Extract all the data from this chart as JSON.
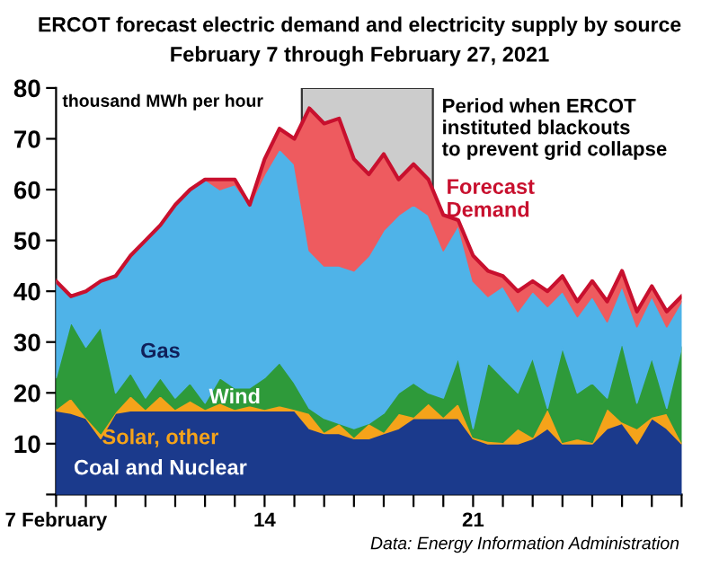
{
  "chart_data": {
    "type": "area",
    "stacked": true,
    "title": "ERCOT forecast electric demand and electricity supply by source",
    "subtitle": "February 7 through February 27, 2021",
    "ylabel": "thousand MWh per hour",
    "x": [
      7,
      7.5,
      8,
      8.5,
      9,
      9.5,
      10,
      10.5,
      11,
      11.5,
      12,
      12.5,
      13,
      13.5,
      14,
      14.5,
      15,
      15.5,
      16,
      16.5,
      17,
      17.5,
      18,
      18.5,
      19,
      19.5,
      20,
      20.5,
      21,
      21.5,
      22,
      22.5,
      23,
      23.5,
      24,
      24.5,
      25,
      25.5,
      26,
      26.5,
      27,
      27.5,
      28
    ],
    "series": [
      {
        "name": "Coal and Nuclear",
        "color": "#1b3a8c",
        "values": [
          16.5,
          16,
          15,
          11,
          16,
          16.5,
          16.5,
          16.5,
          16.5,
          16.5,
          16.5,
          16.5,
          16.5,
          16.5,
          16.5,
          16.5,
          16.5,
          13,
          12,
          12,
          11,
          11,
          12,
          13,
          15,
          15,
          15,
          15,
          11,
          10,
          10,
          10,
          11,
          13,
          10,
          10,
          10,
          13,
          14,
          10,
          15,
          13,
          10
        ]
      },
      {
        "name": "Solar, other",
        "color": "#f5a31a",
        "values": [
          0.3,
          3,
          0.3,
          1,
          0.3,
          3,
          0.3,
          3,
          0.3,
          2,
          0.3,
          1.5,
          0.3,
          1,
          0.3,
          1,
          0.3,
          3,
          0.3,
          2,
          0.3,
          3,
          0.3,
          3,
          0.3,
          3,
          0.3,
          3,
          0.3,
          0.5,
          0.3,
          3,
          0.3,
          4,
          0.3,
          1,
          0.3,
          4,
          0.3,
          3,
          0.3,
          3,
          0.3
        ]
      },
      {
        "name": "Wind",
        "color": "#2e9a3a",
        "values": [
          6.2,
          15,
          13.7,
          21,
          3.7,
          4.5,
          2.2,
          3.5,
          2.2,
          3.5,
          1.2,
          5,
          4.2,
          3.5,
          6.2,
          8.5,
          5.2,
          1,
          2.7,
          0,
          1.7,
          0,
          3.7,
          4,
          6.7,
          2,
          3.7,
          9,
          1.7,
          15.5,
          12.7,
          7,
          15.7,
          0,
          18.7,
          9,
          11.7,
          2,
          15.7,
          5,
          11.7,
          1,
          18.7
        ]
      },
      {
        "name": "Gas",
        "color": "#4fb3e8",
        "values": [
          19,
          5,
          11,
          9,
          23,
          23,
          31,
          30,
          38,
          38,
          44,
          37,
          40,
          36,
          40,
          42,
          43,
          31,
          30,
          31,
          31,
          33,
          36,
          35,
          35,
          35,
          29,
          26,
          29,
          13,
          18,
          16,
          13,
          20,
          11,
          15,
          17,
          15,
          11,
          15,
          12,
          16,
          9
        ]
      },
      {
        "name": "Forecast Demand",
        "color": "#ee5b5f",
        "values": [
          0,
          0,
          0,
          0,
          0,
          0,
          0,
          0,
          0,
          0,
          0,
          2,
          1,
          0,
          3,
          4,
          5,
          28,
          28,
          29,
          22,
          16,
          15,
          7,
          8,
          7,
          7,
          1,
          5,
          5,
          2,
          4,
          2,
          3,
          3,
          3,
          3,
          4,
          3,
          3,
          2,
          3,
          1
        ]
      }
    ],
    "xlim": [
      7,
      28
    ],
    "xticks": [
      {
        "value": 7,
        "label": "7 February"
      },
      {
        "value": 8,
        "label": null
      },
      {
        "value": 9,
        "label": null
      },
      {
        "value": 10,
        "label": null
      },
      {
        "value": 11,
        "label": null
      },
      {
        "value": 12,
        "label": null
      },
      {
        "value": 13,
        "label": null
      },
      14,
      {
        "value": 15,
        "label": null
      },
      {
        "value": 16,
        "label": null
      },
      {
        "value": 17,
        "label": null
      },
      {
        "value": 18,
        "label": null
      },
      {
        "value": 19,
        "label": null
      },
      {
        "value": 20,
        "label": null
      },
      21,
      {
        "value": 22,
        "label": null
      },
      {
        "value": 23,
        "label": null
      },
      {
        "value": 24,
        "label": null
      },
      {
        "value": 25,
        "label": null
      },
      {
        "value": 26,
        "label": null
      },
      {
        "value": 27,
        "label": null
      },
      {
        "value": 28,
        "label": null
      }
    ],
    "ylim": [
      0,
      80
    ],
    "yticks": [
      {
        "value": 0,
        "label": null
      },
      10,
      20,
      30,
      40,
      50,
      60,
      70,
      80
    ],
    "bands": [
      {
        "axis": "x",
        "from": 15.25,
        "to": 19.65,
        "label": "Period when ERCOT\ninstituted blackouts\nto prevent grid collapse",
        "color": "#cccccc"
      }
    ],
    "annotations": [
      "Data: Energy Information Administration"
    ],
    "grid": false,
    "legend": false
  }
}
